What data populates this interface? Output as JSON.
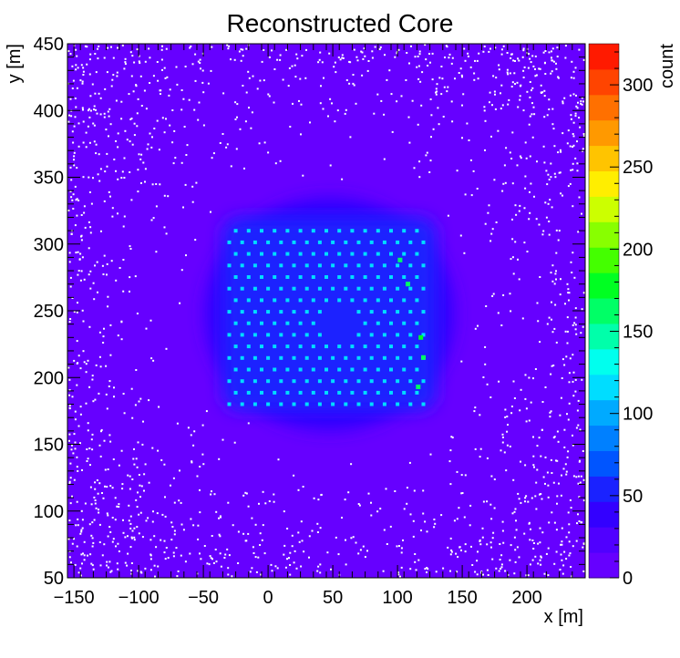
{
  "chart_data": {
    "type": "heatmap",
    "title": "Reconstructed Core",
    "xlabel": "x [m]",
    "ylabel": "y [m]",
    "zlabel": "count",
    "xlim": [
      -155,
      245
    ],
    "ylim": [
      50,
      450
    ],
    "zlim": [
      0,
      325
    ],
    "x_ticks": [
      -150,
      -100,
      -50,
      0,
      50,
      100,
      150,
      200
    ],
    "y_ticks": [
      50,
      100,
      150,
      200,
      250,
      300,
      350,
      400,
      450
    ],
    "z_ticks": [
      0,
      50,
      100,
      150,
      200,
      250,
      300
    ],
    "x_tick_labels": [
      "−150",
      "−100",
      "−50",
      "0",
      "50",
      "100",
      "150",
      "200"
    ],
    "y_tick_labels": [
      "50",
      "100",
      "150",
      "200",
      "250",
      "300",
      "350",
      "400",
      "450"
    ],
    "z_tick_labels": [
      "0",
      "50",
      "100",
      "150",
      "200",
      "250",
      "300"
    ],
    "palette": [
      "#6600ff",
      "#5000ff",
      "#3300ff",
      "#1a22ff",
      "#0055ff",
      "#0080ff",
      "#00aaff",
      "#00ddff",
      "#00ffee",
      "#00ffaa",
      "#00ff66",
      "#00ff22",
      "#44ff00",
      "#88ff00",
      "#ccff00",
      "#ffee00",
      "#ffc400",
      "#ff9900",
      "#ff7000",
      "#ff4400",
      "#ff1a00"
    ],
    "background_color": "#6600ff",
    "array_region": {
      "x": [
        -35,
        130
      ],
      "y": [
        175,
        320
      ],
      "level": 80,
      "station_level": 110,
      "station_spacing": 10
    },
    "hot_stations": [
      {
        "x": 102,
        "y": 288,
        "value": 170
      },
      {
        "x": 108,
        "y": 270,
        "value": 160
      },
      {
        "x": 118,
        "y": 230,
        "value": 175
      },
      {
        "x": 120,
        "y": 215,
        "value": 165
      },
      {
        "x": 116,
        "y": 193,
        "value": 160
      }
    ]
  }
}
